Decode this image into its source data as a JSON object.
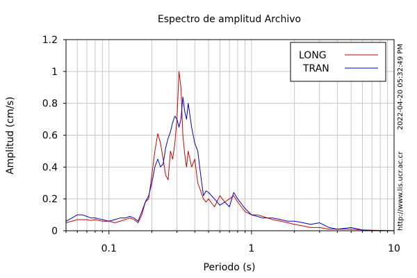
{
  "chart_data": {
    "type": "line",
    "title": "Espectro de amplitud Archivo",
    "xlabel": "Periodo (s)",
    "ylabel": "Amplitud (cm/s)",
    "xscale": "log",
    "xlim": [
      0.05,
      10
    ],
    "ylim": [
      0,
      1.2
    ],
    "x_ticks": [
      {
        "value": 0.1,
        "label": "0.1"
      },
      {
        "value": 1,
        "label": "1"
      },
      {
        "value": 10,
        "label": "10"
      }
    ],
    "y_ticks": [
      {
        "value": 0,
        "label": "0"
      },
      {
        "value": 0.2,
        "label": "0.2"
      },
      {
        "value": 0.4,
        "label": "0.4"
      },
      {
        "value": 0.6,
        "label": "0.6"
      },
      {
        "value": 0.8,
        "label": "0.8"
      },
      {
        "value": 1,
        "label": "1"
      },
      {
        "value": 1.2,
        "label": "1.2"
      }
    ],
    "grid": true,
    "legend_position": "top-right",
    "side_labels": [
      "2022-04-20 05:32:49 PM",
      "http://www.lis.ucr.ac.cr"
    ],
    "series": [
      {
        "name": "LONG",
        "color": "#cc0000",
        "x": [
          0.05,
          0.055,
          0.06,
          0.065,
          0.07,
          0.075,
          0.08,
          0.09,
          0.1,
          0.11,
          0.12,
          0.13,
          0.14,
          0.15,
          0.16,
          0.17,
          0.18,
          0.19,
          0.2,
          0.21,
          0.22,
          0.23,
          0.24,
          0.25,
          0.26,
          0.27,
          0.28,
          0.29,
          0.3,
          0.31,
          0.32,
          0.33,
          0.34,
          0.35,
          0.36,
          0.38,
          0.4,
          0.42,
          0.44,
          0.46,
          0.48,
          0.5,
          0.55,
          0.6,
          0.65,
          0.7,
          0.75,
          0.8,
          0.9,
          1.0,
          1.1,
          1.2,
          1.4,
          1.6,
          1.8,
          2.0,
          2.3,
          2.6,
          3.0,
          3.5,
          4.0,
          5.0,
          6.0,
          7.0,
          8.0,
          10.0
        ],
        "y": [
          0.05,
          0.06,
          0.07,
          0.07,
          0.07,
          0.065,
          0.07,
          0.06,
          0.06,
          0.05,
          0.06,
          0.07,
          0.08,
          0.07,
          0.05,
          0.1,
          0.18,
          0.2,
          0.35,
          0.5,
          0.61,
          0.55,
          0.45,
          0.35,
          0.32,
          0.5,
          0.45,
          0.55,
          0.7,
          1.0,
          0.9,
          0.6,
          0.48,
          0.4,
          0.5,
          0.4,
          0.45,
          0.3,
          0.25,
          0.2,
          0.18,
          0.2,
          0.15,
          0.22,
          0.18,
          0.2,
          0.22,
          0.18,
          0.12,
          0.1,
          0.1,
          0.09,
          0.07,
          0.06,
          0.05,
          0.04,
          0.03,
          0.02,
          0.02,
          0.01,
          0.01,
          0.01,
          0.005,
          0.003,
          0.002,
          0.001
        ]
      },
      {
        "name": "TRAN",
        "color": "#0000cc",
        "x": [
          0.05,
          0.055,
          0.06,
          0.065,
          0.07,
          0.075,
          0.08,
          0.09,
          0.1,
          0.11,
          0.12,
          0.13,
          0.14,
          0.15,
          0.16,
          0.17,
          0.18,
          0.19,
          0.2,
          0.21,
          0.22,
          0.23,
          0.24,
          0.25,
          0.26,
          0.27,
          0.28,
          0.29,
          0.3,
          0.31,
          0.32,
          0.33,
          0.34,
          0.35,
          0.36,
          0.38,
          0.4,
          0.42,
          0.44,
          0.46,
          0.48,
          0.5,
          0.55,
          0.6,
          0.65,
          0.7,
          0.75,
          0.8,
          0.9,
          1.0,
          1.1,
          1.2,
          1.4,
          1.6,
          1.8,
          2.0,
          2.3,
          2.6,
          3.0,
          3.5,
          4.0,
          5.0,
          6.0,
          7.0,
          8.0,
          10.0
        ],
        "y": [
          0.06,
          0.08,
          0.1,
          0.1,
          0.09,
          0.08,
          0.08,
          0.07,
          0.06,
          0.07,
          0.08,
          0.08,
          0.09,
          0.08,
          0.06,
          0.12,
          0.18,
          0.22,
          0.3,
          0.4,
          0.45,
          0.4,
          0.42,
          0.52,
          0.58,
          0.62,
          0.68,
          0.72,
          0.7,
          0.65,
          0.7,
          0.84,
          0.75,
          0.7,
          0.8,
          0.65,
          0.55,
          0.5,
          0.35,
          0.22,
          0.25,
          0.24,
          0.2,
          0.16,
          0.18,
          0.15,
          0.24,
          0.2,
          0.14,
          0.1,
          0.09,
          0.08,
          0.08,
          0.07,
          0.06,
          0.06,
          0.05,
          0.04,
          0.05,
          0.02,
          0.01,
          0.02,
          0.005,
          0.002,
          0.001,
          0.0
        ]
      }
    ]
  }
}
